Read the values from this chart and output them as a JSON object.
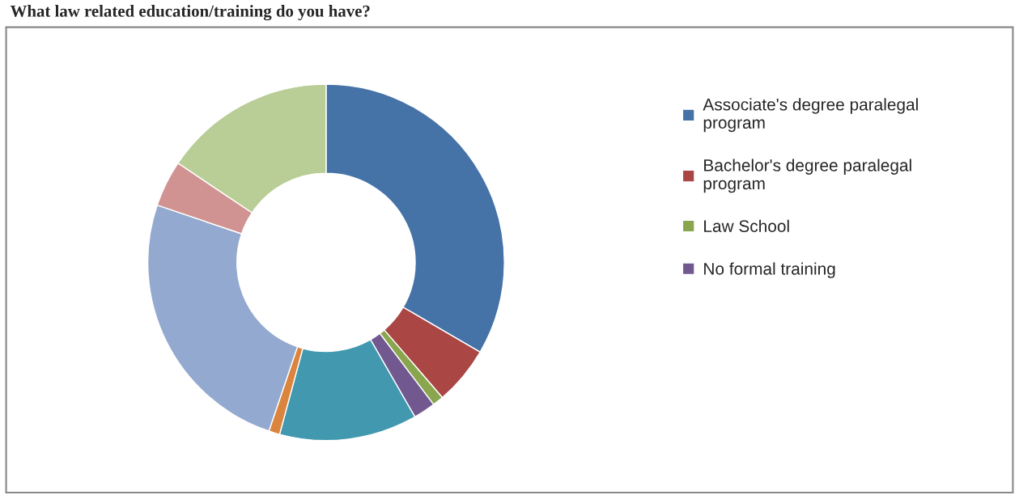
{
  "chart_data": {
    "type": "donut",
    "title": "What law related education/training do you have?",
    "categories": [
      "Associate's degree paralegal program",
      "Bachelor's degree paralegal program",
      "Law School",
      "No formal training",
      null,
      null,
      null,
      null,
      null
    ],
    "values": [
      33.4,
      5.3,
      1.0,
      2.0,
      12.5,
      1.0,
      25.0,
      4.2,
      15.6
    ],
    "colors": [
      "#4572a7",
      "#aa4643",
      "#89a54e",
      "#71588f",
      "#4198af",
      "#db843d",
      "#93a9cf",
      "#d19392",
      "#b9cd96"
    ],
    "legend": "right"
  }
}
